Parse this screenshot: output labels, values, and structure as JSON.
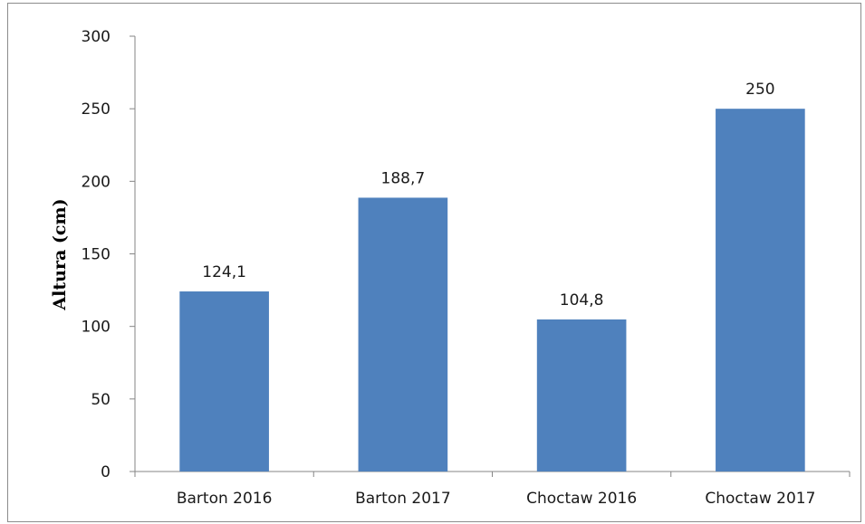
{
  "chart_data": {
    "type": "bar",
    "title": "",
    "xlabel": "",
    "ylabel": "Altura (cm)",
    "categories": [
      "Barton 2016",
      "Barton 2017",
      "Choctaw 2016",
      "Choctaw 2017"
    ],
    "values": [
      124.1,
      188.7,
      104.8,
      250
    ],
    "data_labels": [
      "124,1",
      "188,7",
      "104,8",
      "250"
    ],
    "ylim": [
      0,
      300
    ],
    "yticks": [
      0,
      50,
      100,
      150,
      200,
      250,
      300
    ],
    "grid": false,
    "legend": "none",
    "bar_color": "#4f81bd"
  }
}
